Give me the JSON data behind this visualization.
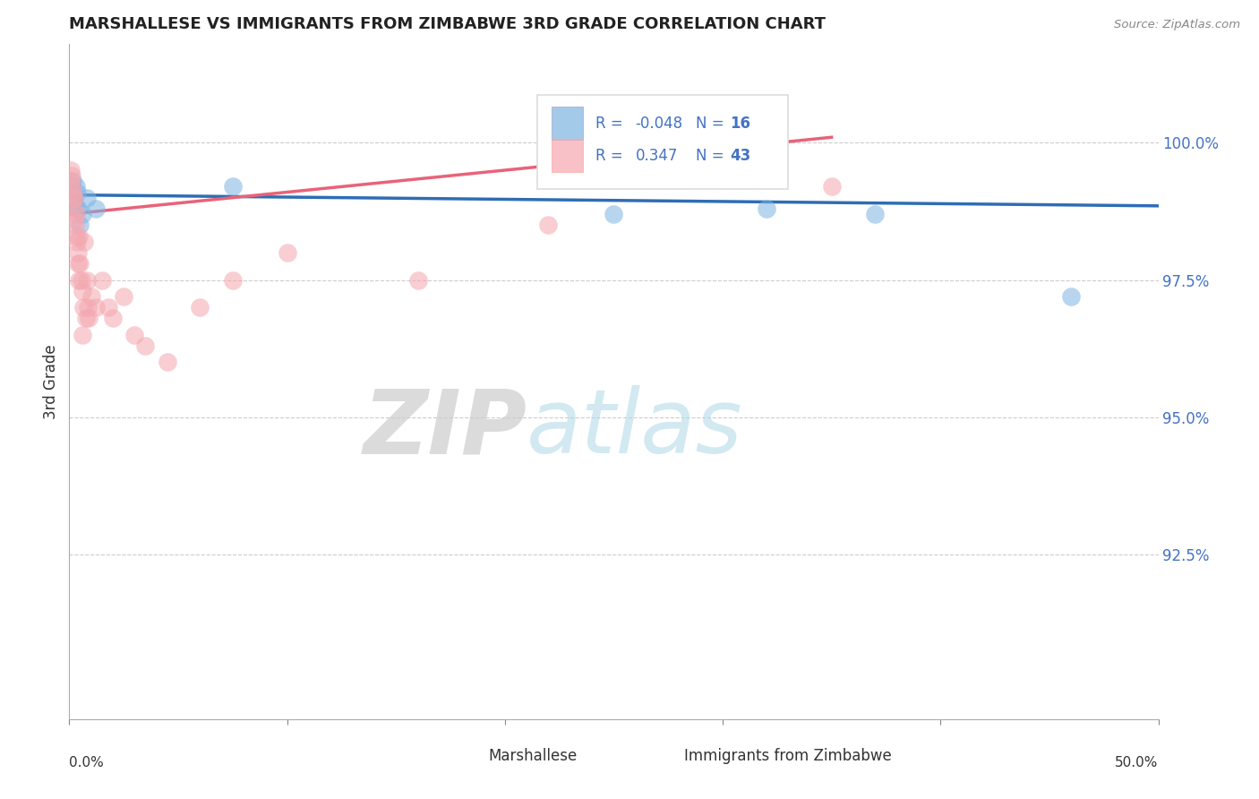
{
  "title": "MARSHALLESE VS IMMIGRANTS FROM ZIMBABWE 3RD GRADE CORRELATION CHART",
  "source": "Source: ZipAtlas.com",
  "ylabel": "3rd Grade",
  "xlim": [
    0.0,
    50.0
  ],
  "ylim": [
    89.5,
    101.8
  ],
  "blue_R": -0.048,
  "blue_N": 16,
  "pink_R": 0.347,
  "pink_N": 43,
  "blue_color": "#7EB4E2",
  "pink_color": "#F4A7B0",
  "blue_line_color": "#2E6DB4",
  "pink_line_color": "#E8637A",
  "legend_blue_label": "Marshallese",
  "legend_pink_label": "Immigrants from Zimbabwe",
  "watermark_zip": "ZIP",
  "watermark_atlas": "atlas",
  "ytick_vals": [
    92.5,
    95.0,
    97.5,
    100.0
  ],
  "blue_scatter_x": [
    0.1,
    0.15,
    0.2,
    0.25,
    0.3,
    0.4,
    0.5,
    0.6,
    0.8,
    1.2,
    7.5,
    25.0,
    32.0,
    37.0,
    46.0,
    0.35
  ],
  "blue_scatter_y": [
    99.1,
    99.3,
    99.0,
    98.9,
    99.2,
    98.8,
    98.5,
    98.7,
    99.0,
    98.8,
    99.2,
    98.7,
    98.8,
    98.7,
    97.2,
    99.1
  ],
  "pink_scatter_x": [
    0.05,
    0.08,
    0.1,
    0.12,
    0.15,
    0.18,
    0.2,
    0.22,
    0.25,
    0.28,
    0.3,
    0.32,
    0.35,
    0.38,
    0.4,
    0.42,
    0.45,
    0.5,
    0.55,
    0.6,
    0.65,
    0.7,
    0.75,
    0.8,
    0.85,
    0.9,
    1.0,
    1.2,
    1.5,
    1.8,
    2.0,
    2.5,
    3.0,
    3.5,
    4.5,
    6.0,
    7.5,
    10.0,
    16.0,
    22.0,
    28.0,
    35.0,
    0.6
  ],
  "pink_scatter_y": [
    99.3,
    99.5,
    99.2,
    99.4,
    99.1,
    99.0,
    98.8,
    98.6,
    99.0,
    98.5,
    98.3,
    98.7,
    98.2,
    98.0,
    97.8,
    98.3,
    97.5,
    97.8,
    97.5,
    97.3,
    97.0,
    98.2,
    96.8,
    97.5,
    97.0,
    96.8,
    97.2,
    97.0,
    97.5,
    97.0,
    96.8,
    97.2,
    96.5,
    96.3,
    96.0,
    97.0,
    97.5,
    98.0,
    97.5,
    98.5,
    99.5,
    99.2,
    96.5
  ]
}
